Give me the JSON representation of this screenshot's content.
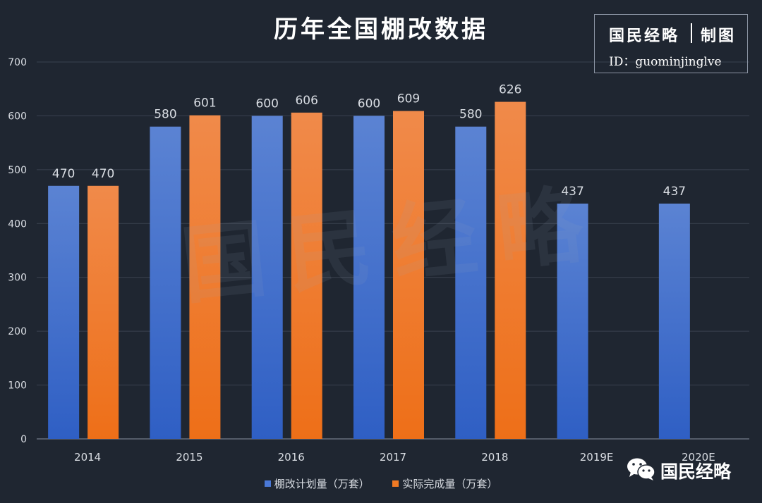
{
  "chart_data": {
    "type": "bar",
    "title": "历年全国棚改数据",
    "categories": [
      "2014",
      "2015",
      "2016",
      "2017",
      "2018",
      "2019E",
      "2020E"
    ],
    "series": [
      {
        "name": "棚改计划量（万套）",
        "values": [
          470,
          580,
          600,
          600,
          580,
          437,
          437
        ],
        "color": "#3f6fce"
      },
      {
        "name": "实际完成量（万套）",
        "values": [
          470,
          601,
          606,
          609,
          626,
          null,
          null
        ],
        "color": "#f07a24"
      }
    ],
    "ylim": [
      0,
      700
    ],
    "yticks": [
      0,
      100,
      200,
      300,
      400,
      500,
      600,
      700
    ],
    "xlabel": "",
    "ylabel": "",
    "grid": true,
    "legend_position": "bottom"
  },
  "brand": {
    "name": "国民经略",
    "made_by": "制图",
    "id_line": "ID：guominjinglve",
    "watermark": "国民经略"
  },
  "wechat": {
    "account": "国民经略"
  },
  "colors": {
    "background": "#1f2631",
    "grid": "#3a4250",
    "text": "#d9dde3"
  }
}
